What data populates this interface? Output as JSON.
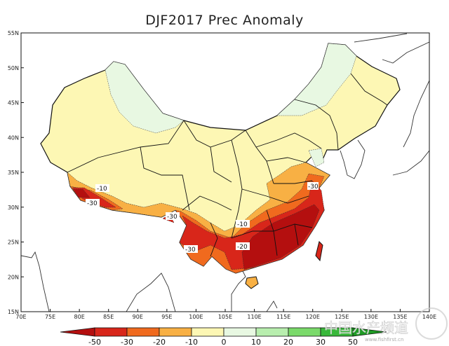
{
  "title": "DJF2017 Prec Anomaly",
  "map": {
    "lon_ticks": [
      "70E",
      "75E",
      "80E",
      "85E",
      "90E",
      "95E",
      "100E",
      "105E",
      "110E",
      "115E",
      "120E",
      "125E",
      "130E",
      "135E",
      "140E"
    ],
    "lat_ticks": [
      "15N",
      "20N",
      "25N",
      "30N",
      "35N",
      "40N",
      "45N",
      "50N",
      "55N"
    ],
    "lon_range": [
      70,
      140
    ],
    "lat_range": [
      15,
      55
    ],
    "contour_labels": [
      "-10",
      "-30",
      "-30",
      "-10",
      "-20",
      "-30",
      "-30"
    ]
  },
  "colorbar": {
    "labels": [
      "-50",
      "-30",
      "-20",
      "-10",
      "0",
      "10",
      "20",
      "30",
      "50"
    ],
    "colors": [
      "#b40f0f",
      "#d8261a",
      "#f06a1e",
      "#f8b044",
      "#fdf7b4",
      "#e8f8e2",
      "#b8eeae",
      "#7ada6a",
      "#38b83a",
      "#1e9a24"
    ]
  },
  "watermark": {
    "text": "中国水产频道",
    "url": "www.fishfirst.cn"
  }
}
